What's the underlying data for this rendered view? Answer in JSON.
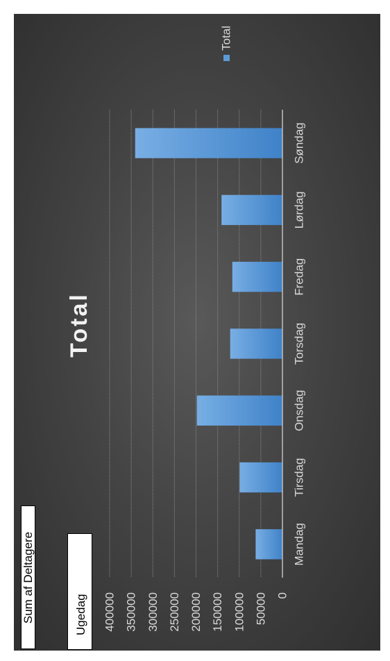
{
  "chart_data": {
    "type": "bar",
    "title": "Total",
    "categories": [
      "Mandag",
      "Tirsdag",
      "Onsdag",
      "Torsdag",
      "Fredag",
      "Lørdag",
      "Søndag"
    ],
    "series": [
      {
        "name": "Total",
        "values": [
          62000,
          99000,
          198000,
          121000,
          116000,
          141000,
          341000
        ],
        "color": "#5b9bd5"
      }
    ],
    "y_ticks": [
      "0",
      "50000",
      "100000",
      "150000",
      "200000",
      "250000",
      "300000",
      "350000",
      "400000"
    ],
    "ylim": [
      0,
      400000
    ],
    "grid": true,
    "legend": "right",
    "value_field_button": "Sum af Deltagere",
    "axis_field_button": "Ugedag"
  }
}
